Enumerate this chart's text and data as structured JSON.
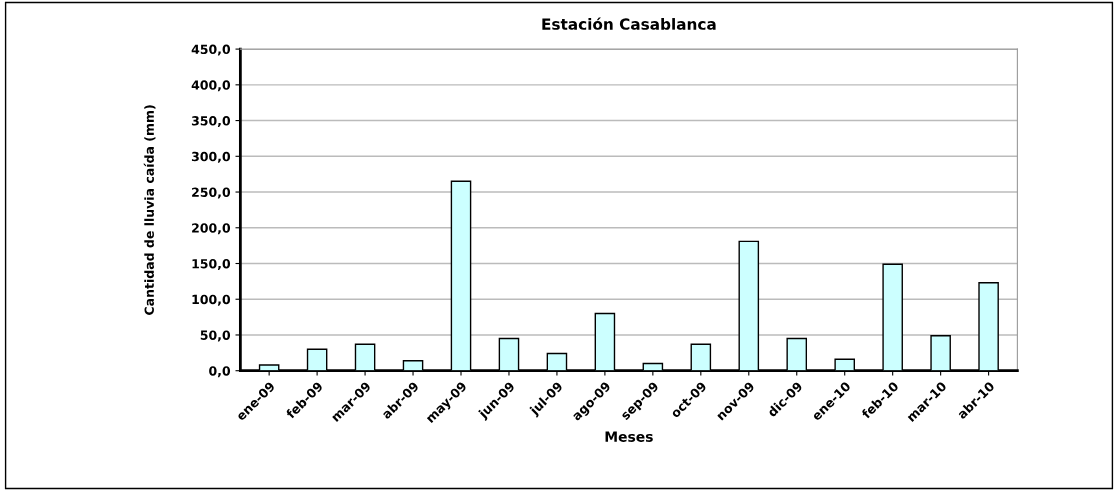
{
  "chart_data": {
    "type": "bar",
    "title": "Estación Casablanca",
    "xlabel": "Meses",
    "ylabel": "Cantidad de lluvia caída (mm)",
    "categories": [
      "ene-09",
      "feb-09",
      "mar-09",
      "abr-09",
      "may-09",
      "jun-09",
      "jul-09",
      "ago-09",
      "sep-09",
      "oct-09",
      "nov-09",
      "dic-09",
      "ene-10",
      "feb-10",
      "mar-10",
      "abr-10"
    ],
    "values": [
      8,
      30,
      37,
      14,
      265,
      45,
      24,
      80,
      10,
      37,
      181,
      45,
      16,
      149,
      49,
      123
    ],
    "color": "#ccffff",
    "ylim": [
      0,
      450
    ],
    "yticks": [
      {
        "value": 0,
        "label": "0,0"
      },
      {
        "value": 50,
        "label": "50,0"
      },
      {
        "value": 100,
        "label": "100,0"
      },
      {
        "value": 150,
        "label": "150,0"
      },
      {
        "value": 200,
        "label": "200,0"
      },
      {
        "value": 250,
        "label": "250,0"
      },
      {
        "value": 300,
        "label": "300,0"
      },
      {
        "value": 350,
        "label": "350,0"
      },
      {
        "value": 400,
        "label": "400,0"
      },
      {
        "value": 450,
        "label": "450,0"
      }
    ],
    "grid": "y",
    "legend": false
  }
}
